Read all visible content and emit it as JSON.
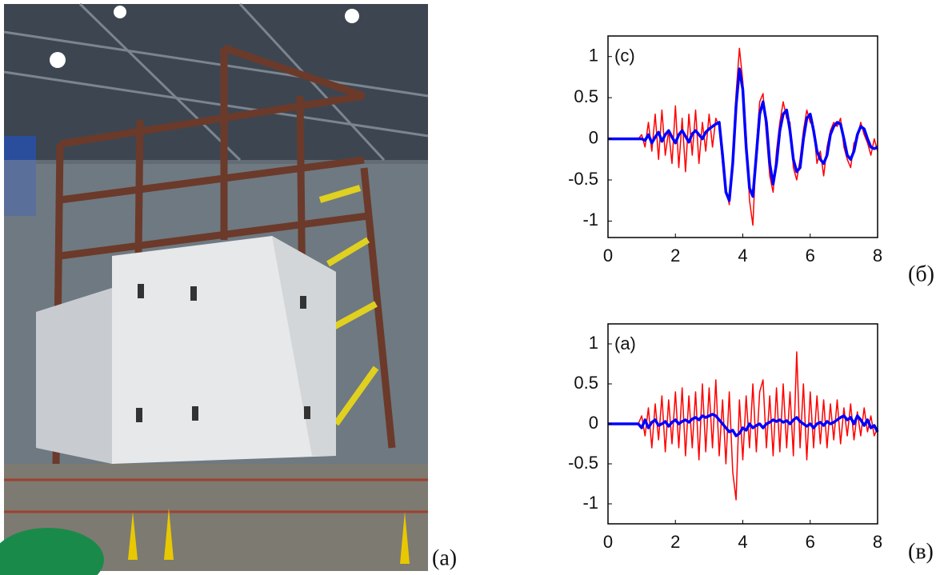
{
  "photo": {
    "label": "(a)"
  },
  "chart_data": [
    {
      "type": "line",
      "annotation": "(c)",
      "panel_label": "(б)",
      "x": [
        0,
        0.1,
        0.2,
        0.3,
        0.4,
        0.5,
        0.6,
        0.7,
        0.8,
        0.9,
        1,
        1.1,
        1.2,
        1.3,
        1.4,
        1.5,
        1.6,
        1.7,
        1.8,
        1.9,
        2,
        2.1,
        2.2,
        2.3,
        2.4,
        2.5,
        2.6,
        2.7,
        2.8,
        2.9,
        3,
        3.1,
        3.2,
        3.3,
        3.4,
        3.5,
        3.6,
        3.7,
        3.8,
        3.9,
        4,
        4.1,
        4.2,
        4.3,
        4.4,
        4.5,
        4.6,
        4.7,
        4.8,
        4.9,
        5,
        5.1,
        5.2,
        5.3,
        5.4,
        5.5,
        5.6,
        5.7,
        5.8,
        5.9,
        6,
        6.1,
        6.2,
        6.3,
        6.4,
        6.5,
        6.6,
        6.7,
        6.8,
        6.9,
        7,
        7.1,
        7.2,
        7.3,
        7.4,
        7.5,
        7.6,
        7.7,
        7.8,
        7.9,
        8
      ],
      "series": [
        {
          "color": "#ff0000",
          "values": [
            0,
            0,
            0,
            0,
            0,
            0,
            0,
            0,
            0,
            0,
            0.05,
            -0.1,
            0.2,
            -0.15,
            0.3,
            -0.25,
            0.35,
            -0.2,
            0.1,
            -0.3,
            0.4,
            -0.35,
            0.25,
            -0.4,
            0.3,
            -0.2,
            0.35,
            -0.3,
            0.2,
            -0.15,
            0.3,
            -0.1,
            0.25,
            0.15,
            -0.3,
            -0.6,
            -0.8,
            -0.2,
            0.55,
            1.1,
            0.7,
            0.05,
            -0.75,
            -1.05,
            -0.1,
            0.45,
            0.55,
            0.05,
            -0.45,
            -0.65,
            -0.15,
            0.2,
            0.45,
            0.25,
            0.2,
            -0.35,
            -0.5,
            -0.25,
            0.1,
            0.35,
            0.2,
            0.15,
            -0.3,
            -0.15,
            -0.45,
            -0.1,
            0.1,
            0.2,
            0.15,
            0.25,
            -0.1,
            -0.25,
            -0.35,
            -0.05,
            0,
            0.2,
            0.05,
            -0.05,
            -0.2,
            0,
            -0.15
          ]
        },
        {
          "color": "#0000ff",
          "values": [
            0,
            0,
            0,
            0,
            0,
            0,
            0,
            0,
            0,
            0,
            0,
            -0.02,
            0.05,
            -0.05,
            0.02,
            0.08,
            -0.03,
            0.05,
            0.1,
            0.02,
            -0.05,
            0.05,
            0.1,
            0.03,
            -0.04,
            0.06,
            0.1,
            0.05,
            0,
            0.08,
            0.12,
            0.15,
            0.18,
            0.2,
            -0.2,
            -0.65,
            -0.75,
            -0.3,
            0.4,
            0.85,
            0.6,
            -0.1,
            -0.6,
            -0.7,
            -0.2,
            0.3,
            0.45,
            0.2,
            -0.3,
            -0.55,
            -0.3,
            0.1,
            0.3,
            0.35,
            0.1,
            -0.25,
            -0.4,
            -0.35,
            0,
            0.25,
            0.3,
            0.1,
            -0.15,
            -0.25,
            -0.3,
            -0.2,
            0.05,
            0.15,
            0.2,
            0.18,
            0,
            -0.2,
            -0.25,
            -0.15,
            0.05,
            0.15,
            0.12,
            0,
            -0.1,
            -0.12,
            -0.1
          ]
        }
      ],
      "xlim": [
        0,
        8
      ],
      "xticks": [
        0,
        2,
        4,
        6,
        8
      ],
      "ylim": [
        -1.2,
        1.25
      ],
      "yticks": [
        -1,
        -0.5,
        0,
        0.5,
        1
      ]
    },
    {
      "type": "line",
      "annotation": "(a)",
      "panel_label": "(в)",
      "x": [
        0,
        0.1,
        0.2,
        0.3,
        0.4,
        0.5,
        0.6,
        0.7,
        0.8,
        0.9,
        1,
        1.1,
        1.2,
        1.3,
        1.4,
        1.5,
        1.6,
        1.7,
        1.8,
        1.9,
        2,
        2.1,
        2.2,
        2.3,
        2.4,
        2.5,
        2.6,
        2.7,
        2.8,
        2.9,
        3,
        3.1,
        3.2,
        3.3,
        3.4,
        3.5,
        3.6,
        3.7,
        3.8,
        3.9,
        4,
        4.1,
        4.2,
        4.3,
        4.4,
        4.5,
        4.6,
        4.7,
        4.8,
        4.9,
        5,
        5.1,
        5.2,
        5.3,
        5.4,
        5.5,
        5.6,
        5.7,
        5.8,
        5.9,
        6,
        6.1,
        6.2,
        6.3,
        6.4,
        6.5,
        6.6,
        6.7,
        6.8,
        6.9,
        7,
        7.1,
        7.2,
        7.3,
        7.4,
        7.5,
        7.6,
        7.7,
        7.8,
        7.9,
        8
      ],
      "series": [
        {
          "color": "#ff0000",
          "values": [
            0,
            0,
            0,
            0,
            0,
            0,
            0,
            0,
            0,
            0,
            0.1,
            -0.15,
            0.2,
            -0.3,
            0.25,
            -0.2,
            0.35,
            -0.35,
            0.3,
            -0.25,
            0.4,
            -0.3,
            0.45,
            -0.4,
            0.35,
            -0.3,
            0.4,
            -0.45,
            0.5,
            -0.35,
            0.45,
            -0.3,
            0.55,
            -0.4,
            0.3,
            -0.5,
            0.4,
            -0.6,
            -0.95,
            0.3,
            -0.45,
            0.35,
            -0.3,
            0.5,
            -0.35,
            0.4,
            0.55,
            -0.3,
            0.35,
            -0.4,
            0.45,
            -0.35,
            0.5,
            -0.3,
            0.4,
            -0.4,
            0.9,
            -0.3,
            0.5,
            -0.45,
            0.4,
            -0.3,
            0.35,
            -0.25,
            0.3,
            -0.3,
            0.25,
            -0.2,
            0.3,
            -0.25,
            0.2,
            -0.15,
            0.25,
            -0.2,
            0.15,
            -0.15,
            0.2,
            -0.1,
            0.1,
            -0.15,
            -0.05
          ]
        },
        {
          "color": "#0000ff",
          "values": [
            0,
            0,
            0,
            0,
            0,
            0,
            0,
            0,
            0,
            0,
            -0.05,
            0.05,
            -0.05,
            0.02,
            0.05,
            -0.02,
            0,
            0.03,
            -0.03,
            0.02,
            0.05,
            0,
            0.03,
            0.05,
            0.02,
            0.06,
            0.08,
            0.05,
            0.1,
            0.08,
            0.1,
            0.12,
            0.1,
            0.05,
            0,
            -0.05,
            -0.1,
            -0.08,
            -0.15,
            -0.12,
            -0.05,
            -0.08,
            0,
            -0.05,
            -0.02,
            0,
            -0.05,
            0,
            0.02,
            0.05,
            0.03,
            0.05,
            0.02,
            0.04,
            0,
            0.05,
            0.08,
            0.03,
            0,
            -0.03,
            0,
            -0.05,
            0,
            0.02,
            -0.02,
            0.03,
            0,
            0.02,
            0.05,
            0.08,
            0.1,
            0.05,
            0.08,
            0,
            0.1,
            0.05,
            -0.02,
            0.05,
            -0.05,
            -0.02,
            -0.1
          ]
        }
      ],
      "xlim": [
        0,
        8
      ],
      "xticks": [
        0,
        2,
        4,
        6,
        8
      ],
      "ylim": [
        -1.25,
        1.25
      ],
      "yticks": [
        -1,
        -0.5,
        0,
        0.5,
        1
      ]
    }
  ]
}
